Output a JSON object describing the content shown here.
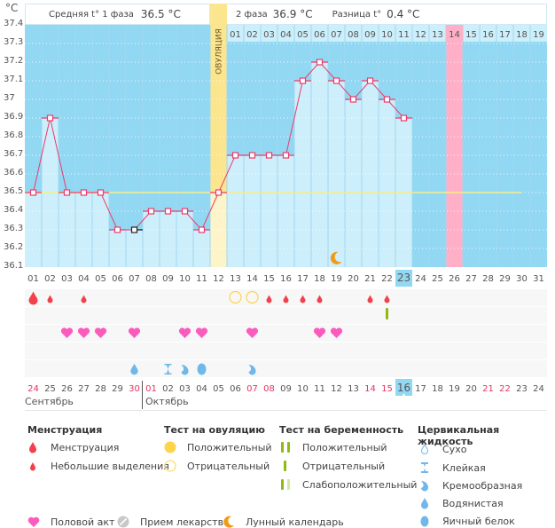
{
  "unit_label": "°C",
  "header": {
    "phase1_label": "Средняя t° 1 фаза",
    "phase1_value": "36.5 °C",
    "phase2_label": "2 фаза",
    "phase2_value": "36.9 °C",
    "diff_label": "Разница t°",
    "diff_value": "0.4 °C"
  },
  "ovulation_label": "ОВУЛЯЦИЯ",
  "colors": {
    "chart_bg": "#92d8f2",
    "bar_fill": "#cdeefb",
    "line": "#ee3b6b",
    "ovulation": "#fbe58f",
    "ovulation_light": "#fdf5c9",
    "highlight_day": "#ffb0c6",
    "cover_line": "#f6ee8a",
    "menstruation": "#f2414b",
    "heart": "#fb5bbd",
    "ov_test": "#fcd54a",
    "preg_test": "#8fba14",
    "preg_test_light": "#d3e7a6",
    "fluid": "#6fb8ea",
    "moon": "#f29a14",
    "today": "#92d8f2"
  },
  "chart_data": {
    "type": "line",
    "title": "",
    "xlabel": "",
    "ylabel": "°C",
    "ylim": [
      36.1,
      37.4
    ],
    "yticks": [
      "37.4",
      "37.3",
      "37.2",
      "37.1",
      "37",
      "36.9",
      "36.8",
      "36.7",
      "36.6",
      "36.5",
      "36.4",
      "36.3",
      "36.2",
      "36.1"
    ],
    "cycle_days": [
      "01",
      "02",
      "03",
      "04",
      "05",
      "06",
      "07",
      "08",
      "09",
      "10",
      "11",
      "12",
      "13",
      "14",
      "15",
      "16",
      "17",
      "18",
      "19",
      "20",
      "21",
      "22",
      "23",
      "24",
      "25",
      "26",
      "27",
      "28",
      "29",
      "30",
      "31"
    ],
    "post_ovulation_days": [
      "01",
      "02",
      "03",
      "04",
      "05",
      "06",
      "07",
      "08",
      "09",
      "10",
      "11",
      "12",
      "13",
      "14",
      "15",
      "16",
      "17",
      "18",
      "19"
    ],
    "temperatures": [
      36.5,
      36.9,
      36.5,
      36.5,
      36.5,
      36.3,
      36.3,
      36.4,
      36.4,
      36.4,
      36.3,
      36.5,
      36.7,
      36.7,
      36.7,
      36.7,
      37.1,
      37.2,
      37.1,
      37.0,
      37.1,
      37.0,
      36.9
    ],
    "cover_line_value": 36.5,
    "ovulation_day": 12,
    "highlighted_cycle_day": 26,
    "highlighted_post_ov_day": "14",
    "current_day": 23,
    "irregular_point_day": 7,
    "moon_day": 19,
    "menstruation": {
      "heavy": [
        1
      ],
      "light": [
        2,
        4,
        15,
        16,
        17,
        18,
        21,
        22
      ]
    },
    "ovulation_test_negative": [
      13,
      14
    ],
    "pregnancy_test_negative": [
      22
    ],
    "intercourse": [
      3,
      4,
      5,
      7,
      10,
      11,
      14,
      18,
      19
    ],
    "cervical_fluid": [
      {
        "day": 7,
        "type": "watery"
      },
      {
        "day": 9,
        "type": "sticky"
      },
      {
        "day": 10,
        "type": "creamy"
      },
      {
        "day": 11,
        "type": "eggwhite"
      },
      {
        "day": 14,
        "type": "creamy"
      }
    ],
    "calendar_dates": [
      "24",
      "25",
      "26",
      "27",
      "28",
      "29",
      "30",
      "01",
      "02",
      "03",
      "04",
      "05",
      "06",
      "07",
      "08",
      "09",
      "10",
      "11",
      "12",
      "13",
      "14",
      "15",
      "16",
      "17",
      "18",
      "19",
      "20",
      "21",
      "22",
      "23",
      "24"
    ],
    "weekend_dates_idx": [
      0,
      6,
      7,
      13,
      14,
      20,
      21,
      27,
      28
    ],
    "today_date_idx": 22,
    "months": [
      "Сентябрь",
      "Октябрь"
    ]
  },
  "legend": {
    "menstruation": {
      "title": "Менструация",
      "items": [
        "Менструация",
        "Небольшие выделения"
      ]
    },
    "ovulation_test": {
      "title": "Тест на овуляцию",
      "items": [
        "Положительный",
        "Отрицательный"
      ]
    },
    "pregnancy_test": {
      "title": "Тест на беременность",
      "items": [
        "Положительный",
        "Отрицательный",
        "Слабоположительный"
      ]
    },
    "cervical_fluid": {
      "title": "Цервикальная жидкость",
      "items": [
        "Сухо",
        "Клейкая",
        "Кремообразная",
        "Водянистая",
        "Яичный белок"
      ]
    },
    "other": [
      "Половой акт",
      "Прием лекарств",
      "Лунный календарь"
    ]
  }
}
